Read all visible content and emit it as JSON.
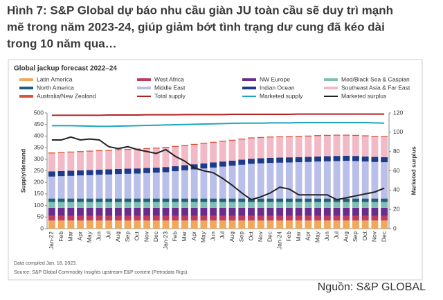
{
  "header": {
    "lines": [
      "Hình 7: S&P Global dự báo nhu cầu giàn JU toàn cầu sẽ duy trì mạnh",
      "mẽ trong năm 2023-24, giúp giảm bớt tình trạng dư cung đã kéo dài",
      "trong 10 năm qua…"
    ]
  },
  "chart_data": {
    "type": "bar",
    "title": "Global jackup forecast 2022–24",
    "categories": [
      "Jan-22",
      "Feb",
      "Mar",
      "Apr",
      "May",
      "Jun",
      "Jul",
      "Aug",
      "Sep",
      "Oct",
      "Nov",
      "Dec",
      "Jan-23",
      "Feb",
      "Mar",
      "Apr",
      "May",
      "Jun",
      "Jul",
      "Aug",
      "Sep",
      "Oct",
      "Nov",
      "Dec",
      "Jan-24",
      "Feb",
      "Mar",
      "Apr",
      "May",
      "Jun",
      "Jul",
      "Aug",
      "Sep",
      "Oct",
      "Nov",
      "Dec"
    ],
    "y_label": "Supply/demand",
    "y2_label": "Marketed surplus",
    "ylim": [
      0,
      500
    ],
    "yticks": [
      0,
      50,
      100,
      150,
      200,
      250,
      300,
      350,
      400,
      450,
      500
    ],
    "y2lim": [
      0,
      120
    ],
    "y2ticks": [
      0,
      20,
      40,
      60,
      80,
      100,
      120
    ],
    "series": [
      {
        "name": "Latin America",
        "type": "bar",
        "color": "#f0a85a",
        "values": [
          35,
          35,
          35,
          35,
          35,
          35,
          35,
          35,
          35,
          35,
          35,
          35,
          35,
          35,
          35,
          35,
          35,
          35,
          35,
          35,
          35,
          35,
          35,
          35,
          35,
          35,
          35,
          35,
          35,
          35,
          35,
          35,
          35,
          35,
          35,
          35
        ]
      },
      {
        "name": "West Africa",
        "type": "bar",
        "color": "#c23b5c",
        "values": [
          20,
          20,
          20,
          20,
          20,
          20,
          20,
          20,
          20,
          20,
          20,
          20,
          20,
          20,
          20,
          20,
          20,
          20,
          20,
          20,
          20,
          20,
          20,
          20,
          20,
          20,
          20,
          20,
          20,
          20,
          20,
          20,
          20,
          20,
          20,
          20
        ]
      },
      {
        "name": "NW Europe",
        "type": "bar",
        "color": "#6a2c8c",
        "values": [
          35,
          35,
          35,
          35,
          35,
          35,
          35,
          35,
          35,
          35,
          35,
          35,
          35,
          35,
          35,
          35,
          35,
          35,
          35,
          35,
          35,
          35,
          35,
          35,
          35,
          35,
          35,
          35,
          35,
          35,
          35,
          35,
          35,
          35,
          35,
          35
        ]
      },
      {
        "name": "Med/Black Sea & Caspian",
        "type": "bar",
        "color": "#7fc0b2",
        "values": [
          25,
          25,
          25,
          25,
          25,
          25,
          25,
          25,
          25,
          25,
          25,
          25,
          25,
          25,
          25,
          25,
          25,
          25,
          25,
          25,
          25,
          25,
          25,
          25,
          25,
          25,
          25,
          25,
          25,
          25,
          25,
          25,
          25,
          25,
          25,
          25
        ]
      },
      {
        "name": "North America",
        "type": "bar",
        "color": "#1f5f7a",
        "values": [
          15,
          15,
          15,
          15,
          15,
          15,
          15,
          15,
          15,
          15,
          15,
          15,
          15,
          15,
          15,
          15,
          15,
          15,
          15,
          15,
          15,
          15,
          15,
          15,
          15,
          15,
          15,
          15,
          15,
          15,
          15,
          15,
          15,
          15,
          15,
          15
        ]
      },
      {
        "name": "Middle East",
        "type": "bar",
        "color": "#b9bfe9",
        "values": [
          95,
          97,
          98,
          100,
          101,
          103,
          104,
          106,
          107,
          108,
          110,
          112,
          114,
          118,
          122,
          126,
          130,
          134,
          138,
          142,
          146,
          150,
          152,
          154,
          155,
          156,
          157,
          158,
          160,
          161,
          162,
          163,
          162,
          160,
          158,
          157
        ]
      },
      {
        "name": "Indian Ocean",
        "type": "bar",
        "color": "#1e3a8a",
        "values": [
          22,
          22,
          22,
          22,
          22,
          22,
          22,
          22,
          22,
          22,
          22,
          22,
          22,
          22,
          22,
          22,
          22,
          22,
          22,
          22,
          22,
          22,
          22,
          22,
          22,
          22,
          22,
          22,
          22,
          22,
          22,
          22,
          22,
          22,
          22,
          22
        ]
      },
      {
        "name": "Southeast Asia & Far East",
        "type": "bar",
        "color": "#f2b9c7",
        "values": [
          78,
          78,
          79,
          79,
          80,
          80,
          80,
          81,
          81,
          82,
          82,
          82,
          83,
          83,
          84,
          84,
          85,
          85,
          86,
          86,
          87,
          88,
          88,
          88,
          88,
          88,
          88,
          88,
          88,
          88,
          88,
          87,
          87,
          87,
          87,
          87
        ]
      },
      {
        "name": "Australia/New Zealand",
        "type": "bar",
        "color": "#d9543a",
        "values": [
          4,
          4,
          4,
          4,
          4,
          4,
          4,
          4,
          4,
          4,
          4,
          4,
          4,
          4,
          4,
          4,
          4,
          4,
          4,
          4,
          4,
          4,
          4,
          4,
          4,
          4,
          4,
          4,
          4,
          4,
          4,
          4,
          4,
          4,
          4,
          4
        ]
      },
      {
        "name": "Total supply",
        "type": "line",
        "color": "#b22222",
        "values": [
          490,
          490,
          490,
          490,
          490,
          490,
          491,
          491,
          491,
          491,
          492,
          492,
          492,
          492,
          493,
          493,
          493,
          493,
          493,
          494,
          494,
          494,
          494,
          494,
          494,
          494,
          495,
          495,
          495,
          495,
          495,
          495,
          495,
          495,
          495,
          495
        ]
      },
      {
        "name": "Marketed supply",
        "type": "line",
        "color": "#1fa3c4",
        "values": [
          445,
          445,
          445,
          444,
          443,
          442,
          442,
          443,
          444,
          445,
          446,
          447,
          448,
          449,
          450,
          451,
          452,
          453,
          454,
          455,
          456,
          456,
          456,
          457,
          457,
          457,
          458,
          458,
          458,
          458,
          458,
          458,
          458,
          458,
          457,
          456
        ]
      },
      {
        "name": "Marketed surplus",
        "type": "line",
        "axis": "y2",
        "color": "#222222",
        "values": [
          92,
          92,
          95,
          92,
          93,
          92,
          85,
          83,
          85,
          82,
          80,
          78,
          82,
          75,
          70,
          63,
          60,
          58,
          52,
          45,
          37,
          30,
          33,
          37,
          43,
          41,
          35,
          35,
          35,
          35,
          30,
          32,
          34,
          36,
          38,
          42
        ]
      }
    ],
    "notes": [
      "Data compiled Jan. 18, 2023.",
      "Source: S&P Global Commodity Insights upstream E&P content (Petrodata Rigs)."
    ]
  },
  "source": "Nguồn: S&P GLOBAL"
}
